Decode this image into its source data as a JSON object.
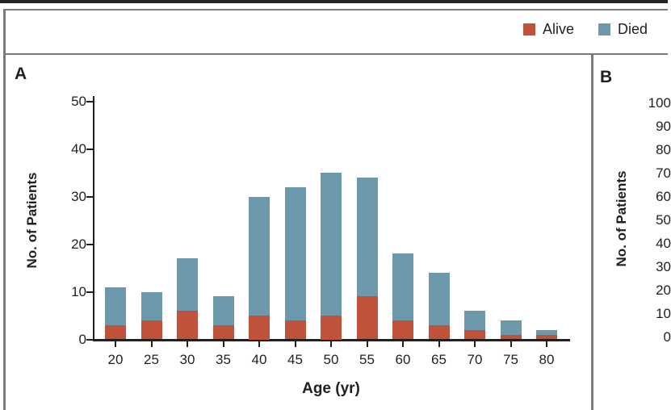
{
  "colors": {
    "alive": "#c0513b",
    "died": "#6d99ad",
    "text": "#231f20",
    "panel_border": "#7a7a7a",
    "top_rule": "#242424",
    "background": "#ffffff"
  },
  "legend": {
    "items": [
      {
        "label": "Alive",
        "color": "#c0513b"
      },
      {
        "label": "Died",
        "color": "#6d99ad"
      }
    ]
  },
  "chart_data": [
    {
      "panel": "A",
      "type": "bar",
      "stacked": true,
      "categories": [
        20,
        25,
        30,
        35,
        40,
        45,
        50,
        55,
        60,
        65,
        70,
        75,
        80
      ],
      "series": [
        {
          "name": "Alive",
          "color": "#c0513b",
          "values": [
            3,
            4,
            6,
            3,
            5,
            4,
            5,
            9,
            4,
            3,
            2,
            1,
            1
          ]
        },
        {
          "name": "Died",
          "color": "#6d99ad",
          "values": [
            8,
            6,
            11,
            6,
            25,
            28,
            30,
            25,
            14,
            11,
            4,
            3,
            1
          ]
        }
      ],
      "totals": [
        11,
        10,
        17,
        9,
        30,
        32,
        35,
        34,
        18,
        14,
        6,
        4,
        2
      ],
      "title": "",
      "xlabel": "Age (yr)",
      "ylabel": "No. of Patients",
      "ylim": [
        0,
        50
      ],
      "y_ticks": [
        0,
        10,
        20,
        30,
        40,
        50
      ],
      "grid": false,
      "legend_position": "top-right"
    },
    {
      "panel": "B",
      "type": "bar",
      "stacked": true,
      "ylabel": "No. of Patients",
      "ylim": [
        0,
        100
      ],
      "y_ticks": [
        0,
        10,
        20,
        30,
        40,
        50,
        60,
        70,
        80,
        90,
        100
      ],
      "grid": false,
      "cropped": true
    }
  ]
}
